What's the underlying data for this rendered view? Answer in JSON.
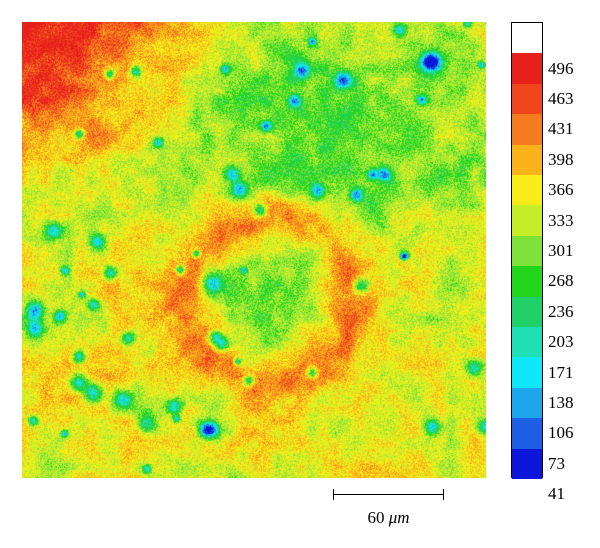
{
  "figure": {
    "colorbar": {
      "ticks": [
        "496",
        "463",
        "431",
        "398",
        "366",
        "333",
        "301",
        "268",
        "236",
        "203",
        "171",
        "138",
        "106",
        "73",
        "41"
      ],
      "colors": [
        "#ffffff",
        "#e8201c",
        "#f0461c",
        "#f57c1e",
        "#fab21a",
        "#f9ec18",
        "#c8ee2a",
        "#7fe23a",
        "#22d61c",
        "#22d06a",
        "#1fe0b4",
        "#0ee8f8",
        "#1ea7ec",
        "#1e5ee4",
        "#0b16d8"
      ]
    },
    "scale_bar": {
      "value": "60",
      "unit": "μm"
    },
    "heatmap": {
      "palette": [
        "#0b16d8",
        "#1e5ee4",
        "#1ea7ec",
        "#0ee8f8",
        "#1fe0b4",
        "#22d06a",
        "#22d61c",
        "#7fe23a",
        "#c8ee2a",
        "#f9ec18",
        "#fab21a",
        "#f57c1e",
        "#f0461c",
        "#e8201c",
        "#ffffff"
      ]
    }
  }
}
